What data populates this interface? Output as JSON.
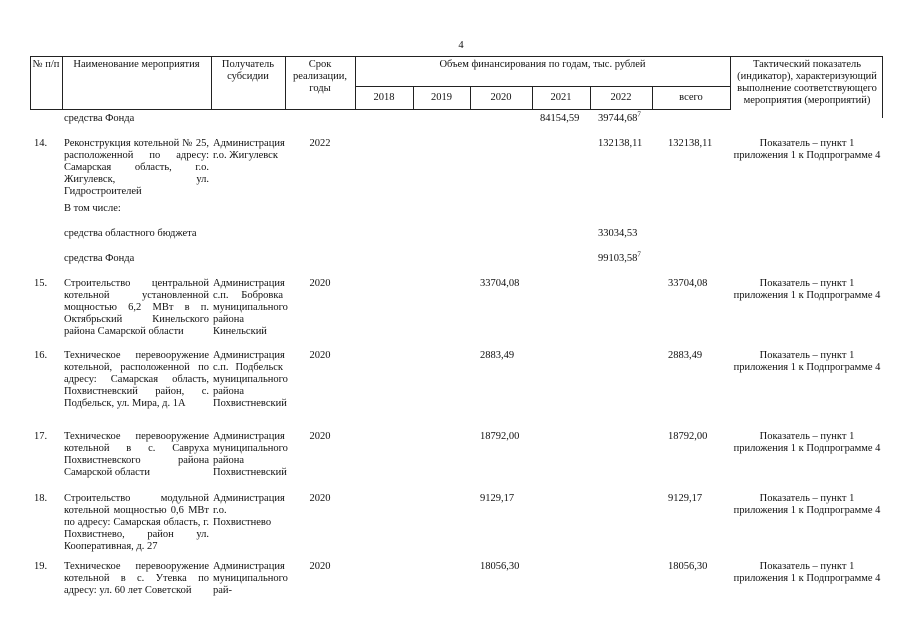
{
  "page_number": "4",
  "header": {
    "num": "№ п/п",
    "name": "Наименование мероприятия",
    "recipient": "Получатель субсидии",
    "term": "Срок реализации, годы",
    "funding": "Объем финансирования по годам, тыс. рублей",
    "years": [
      "2018",
      "2019",
      "2020",
      "2021",
      "2022",
      "всего"
    ],
    "indicator": "Тактический показатель (индикатор), характеризующий выполнение соответствующего мероприятия (мероприятий)"
  },
  "rows": [
    {
      "num": "",
      "name": "средства Фонда",
      "recipient": "",
      "term": "",
      "y2020": "",
      "y2021": "84154,59",
      "y2022": "39744,68",
      "y2022_note": "7",
      "total": "",
      "indicator": ""
    },
    {
      "num": "14.",
      "name": "Реконструкция котельной № 25, расположенной по адресу: Самарская область, г.о. Жигулевск, ул. Гидростроителей",
      "recipient": "Администрация г.о. Жигулевск",
      "term": "2022",
      "y2020": "",
      "y2021": "",
      "y2022": "132138,11",
      "total": "132138,11",
      "indicator": "Показатель – пункт 1 приложения 1 к Подпрограмме 4"
    },
    {
      "num": "",
      "name": "В том числе:"
    },
    {
      "num": "",
      "name": "средства областного бюджета",
      "y2022": "33034,53"
    },
    {
      "num": "",
      "name": "средства Фонда",
      "y2022": "99103,58",
      "y2022_note": "7"
    },
    {
      "num": "15.",
      "name": "Строительство центральной котельной установленной мощностью 6,2 МВт в п. Октябрьский Кинельского района Самарской области",
      "recipient": "Администрация с.п. Бобровка муниципального района Кинельский",
      "term": "2020",
      "y2020": "33704,08",
      "total": "33704,08",
      "indicator": "Показатель – пункт 1 приложения 1 к Подпрограмме 4"
    },
    {
      "num": "16.",
      "name": "Техническое перевооружение котельной, расположенной по адресу: Самарская область, Похвистневский район, с. Подбельск, ул. Мира, д. 1А",
      "recipient": "Администрация с.п. Подбельск муниципального района Похвистневский",
      "term": "2020",
      "y2020": "2883,49",
      "total": "2883,49",
      "indicator": "Показатель – пункт 1 приложения 1 к Подпрограмме 4"
    },
    {
      "num": "17.",
      "name": "Техническое перевооружение котельной в с. Савруха Похвистневского района Самарской области",
      "recipient": "Администрация муниципального района Похвистневский",
      "term": "2020",
      "y2020": "18792,00",
      "total": "18792,00",
      "indicator": "Показатель – пункт 1 приложения 1 к Подпрограмме 4"
    },
    {
      "num": "18.",
      "name": "Строительство модульной котельной мощностью 0,6 МВт по адресу: Самарская область, г. Похвистнево, район ул. Кооперативная, д. 27",
      "recipient": "Администрация г.о. Похвистнево",
      "term": "2020",
      "y2020": "9129,17",
      "total": "9129,17",
      "indicator": "Показатель – пункт 1 приложения 1 к Подпрограмме 4"
    },
    {
      "num": "19.",
      "name": "Техническое перевооружение котельной в с. Утевка по адресу: ул. 60 лет Советской",
      "recipient": "Администрация муниципального рай-",
      "term": "2020",
      "y2020": "18056,30",
      "total": "18056,30",
      "indicator": "Показатель – пункт 1 приложения 1 к Подпрограмме 4"
    }
  ]
}
